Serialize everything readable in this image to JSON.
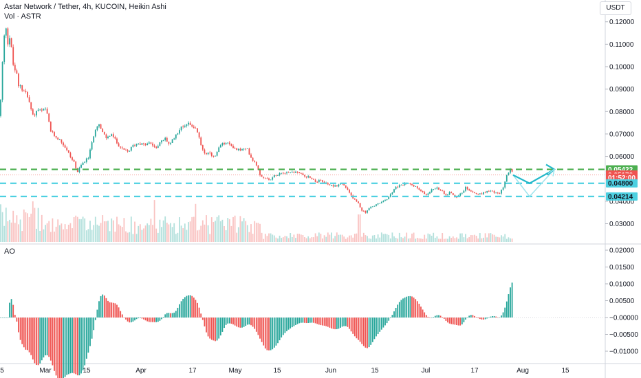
{
  "header": {
    "symbol_title": "Astar Network / Tether, 4h, KUCOIN, Heikin Ashi",
    "volume_label": "Vol · ASTR",
    "quote_currency": "USDT",
    "oscillator_label": "AO"
  },
  "colors": {
    "up": "#26a69a",
    "down": "#ef5350",
    "level_green": "#4caf50",
    "level_cyan": "#4dd0e1",
    "arrow": "#22b7c9",
    "arrow_light": "#9fe3ec"
  },
  "chart_data": [
    {
      "type": "candlestick",
      "title": "Astar Network / Tether, 4h, KUCOIN, Heikin Ashi",
      "x_ticks": [
        "5",
        "Mar",
        "15",
        "Apr",
        "17",
        "May",
        "15",
        "Jun",
        "15",
        "Jul",
        "17",
        "Aug",
        "15"
      ],
      "y_ticks": [
        "0.12000",
        "0.11000",
        "0.10000",
        "0.09000",
        "0.08000",
        "0.07000",
        "0.06000",
        "0.04000",
        "0.03000"
      ],
      "ylim": [
        0.0265,
        0.1235
      ],
      "price_path": [
        [
          0,
          0.078
        ],
        [
          3,
          0.099
        ],
        [
          6,
          0.113
        ],
        [
          9,
          0.118
        ],
        [
          12,
          0.109
        ],
        [
          15,
          0.115
        ],
        [
          18,
          0.102
        ],
        [
          21,
          0.099
        ],
        [
          24,
          0.097
        ],
        [
          27,
          0.091
        ],
        [
          30,
          0.092
        ],
        [
          33,
          0.089
        ],
        [
          36,
          0.09
        ],
        [
          39,
          0.087
        ],
        [
          42,
          0.085
        ],
        [
          45,
          0.081
        ],
        [
          48,
          0.078
        ],
        [
          51,
          0.079
        ],
        [
          55,
          0.081
        ],
        [
          60,
          0.08
        ],
        [
          66,
          0.081
        ],
        [
          70,
          0.077
        ],
        [
          74,
          0.071
        ],
        [
          80,
          0.069
        ],
        [
          88,
          0.067
        ],
        [
          95,
          0.064
        ],
        [
          102,
          0.06
        ],
        [
          108,
          0.057
        ],
        [
          113,
          0.053
        ],
        [
          118,
          0.056
        ],
        [
          123,
          0.058
        ],
        [
          128,
          0.059
        ],
        [
          133,
          0.065
        ],
        [
          138,
          0.072
        ],
        [
          143,
          0.075
        ],
        [
          148,
          0.071
        ],
        [
          155,
          0.068
        ],
        [
          162,
          0.07
        ],
        [
          170,
          0.066
        ],
        [
          178,
          0.063
        ],
        [
          186,
          0.062
        ],
        [
          194,
          0.065
        ],
        [
          202,
          0.066
        ],
        [
          210,
          0.065
        ],
        [
          218,
          0.066
        ],
        [
          226,
          0.064
        ],
        [
          233,
          0.066
        ],
        [
          240,
          0.068
        ],
        [
          247,
          0.065
        ],
        [
          254,
          0.069
        ],
        [
          261,
          0.072
        ],
        [
          268,
          0.074
        ],
        [
          275,
          0.075
        ],
        [
          282,
          0.073
        ],
        [
          287,
          0.071
        ],
        [
          292,
          0.065
        ],
        [
          297,
          0.062
        ],
        [
          305,
          0.061
        ],
        [
          313,
          0.06
        ],
        [
          320,
          0.065
        ],
        [
          328,
          0.066
        ],
        [
          336,
          0.065
        ],
        [
          344,
          0.063
        ],
        [
          352,
          0.063
        ],
        [
          360,
          0.063
        ],
        [
          366,
          0.059
        ],
        [
          372,
          0.057
        ],
        [
          378,
          0.052
        ],
        [
          386,
          0.05
        ],
        [
          394,
          0.05
        ],
        [
          402,
          0.052
        ],
        [
          410,
          0.053
        ],
        [
          418,
          0.053
        ],
        [
          426,
          0.053
        ],
        [
          434,
          0.053
        ],
        [
          442,
          0.051
        ],
        [
          450,
          0.051
        ],
        [
          458,
          0.049
        ],
        [
          466,
          0.049
        ],
        [
          474,
          0.048
        ],
        [
          482,
          0.047
        ],
        [
          490,
          0.047
        ],
        [
          497,
          0.048
        ],
        [
          503,
          0.046
        ],
        [
          509,
          0.043
        ],
        [
          515,
          0.041
        ],
        [
          521,
          0.039
        ],
        [
          526,
          0.036
        ],
        [
          531,
          0.035
        ],
        [
          537,
          0.037
        ],
        [
          544,
          0.038
        ],
        [
          551,
          0.039
        ],
        [
          558,
          0.04
        ],
        [
          566,
          0.042
        ],
        [
          574,
          0.046
        ],
        [
          582,
          0.047
        ],
        [
          590,
          0.048
        ],
        [
          598,
          0.048
        ],
        [
          606,
          0.046
        ],
        [
          614,
          0.044
        ],
        [
          620,
          0.043
        ],
        [
          627,
          0.045
        ],
        [
          634,
          0.046
        ],
        [
          641,
          0.045
        ],
        [
          648,
          0.043
        ],
        [
          655,
          0.044
        ],
        [
          662,
          0.042
        ],
        [
          669,
          0.043
        ],
        [
          677,
          0.046
        ],
        [
          683,
          0.045
        ],
        [
          690,
          0.044
        ],
        [
          697,
          0.043
        ],
        [
          704,
          0.044
        ],
        [
          711,
          0.045
        ],
        [
          719,
          0.044
        ],
        [
          726,
          0.043
        ],
        [
          731,
          0.046
        ],
        [
          735,
          0.05
        ],
        [
          739,
          0.053
        ],
        [
          742,
          0.054
        ],
        [
          746,
          0.052
        ]
      ],
      "levels": [
        {
          "value": 0.05422,
          "color": "green",
          "style": "dashed"
        },
        {
          "value": 0.048,
          "color": "cyan",
          "style": "dashed"
        },
        {
          "value": 0.04214,
          "color": "cyan",
          "style": "dashed"
        }
      ],
      "price_labels": [
        {
          "text": "0.05422",
          "value": 0.05422,
          "bg": "#4caf50",
          "color": "#ffffff"
        },
        {
          "text": "0.05194",
          "value": 0.05194,
          "bg": "#ef5350",
          "color": "#ffffff"
        },
        {
          "text": "0.05170",
          "value": 0.0517,
          "bg": "#ef5350",
          "color": "#ffffff"
        },
        {
          "text": "01:52:00",
          "value": 0.05055,
          "bg": "#ef5350",
          "color": "#ffffff"
        },
        {
          "text": "0.04800",
          "value": 0.048,
          "bg": "#4dd0e1",
          "color": "#131722"
        },
        {
          "text": "0.04214",
          "value": 0.04214,
          "bg": "#4dd0e1",
          "color": "#131722"
        }
      ],
      "projection": {
        "main": [
          [
            0.0517,
            0
          ],
          [
            0.048,
            1
          ],
          [
            0.05422,
            2
          ]
        ],
        "alt": [
          [
            0.0517,
            0
          ],
          [
            0.04214,
            1
          ],
          [
            0.05422,
            2
          ]
        ]
      }
    },
    {
      "type": "histogram",
      "title": "AO",
      "y_ticks": [
        "0.02000",
        "0.01500",
        "0.01000",
        "0.00500",
        "−0.00000",
        "−0.00500",
        "−0.01000"
      ],
      "ylim": [
        -0.0122,
        0.0204
      ]
    }
  ]
}
